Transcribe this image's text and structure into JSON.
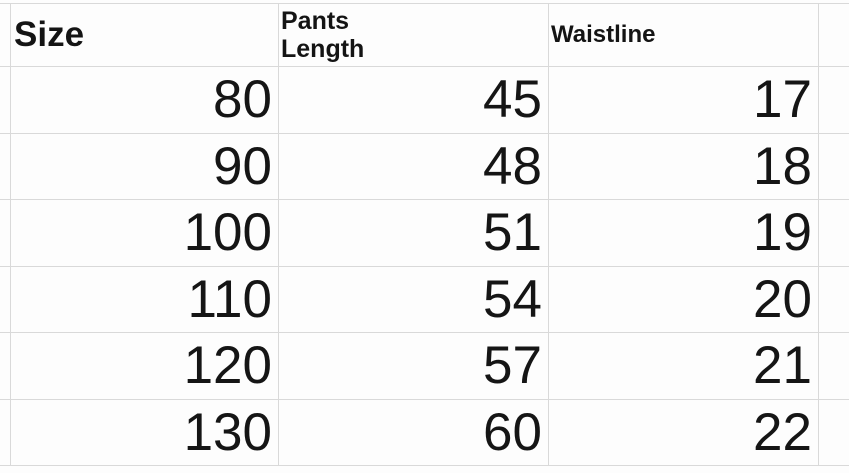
{
  "header": {
    "size": "Size",
    "pants_length_lines": [
      "Pants",
      "Length"
    ],
    "waistline": "Waistline"
  },
  "chart_data": {
    "type": "table",
    "columns": [
      "Size",
      "Pants Length",
      "Waistline"
    ],
    "rows": [
      [
        80,
        45,
        17
      ],
      [
        90,
        48,
        18
      ],
      [
        100,
        51,
        19
      ],
      [
        110,
        54,
        20
      ],
      [
        120,
        57,
        21
      ],
      [
        130,
        60,
        22
      ]
    ]
  },
  "colors": {
    "background": "#fdfdfd",
    "grid_line": "#d9d9d9",
    "text": "#151515"
  }
}
